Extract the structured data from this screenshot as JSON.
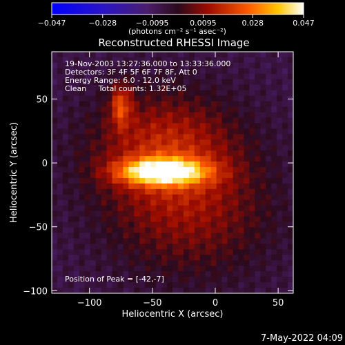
{
  "chart_data": {
    "type": "heatmap",
    "title": "Reconstructed RHESSI Image",
    "xlabel": "Heliocentric X (arcsec)",
    "ylabel": "Heliocentric Y (arcsec)",
    "xlim": [
      -130,
      62
    ],
    "ylim": [
      -102,
      87
    ],
    "x_ticks": [
      -100,
      -50,
      0,
      50
    ],
    "y_ticks": [
      -100,
      -50,
      0,
      50
    ],
    "x_tick_labels": [
      "−100",
      "−50",
      "0",
      "50"
    ],
    "y_tick_labels": [
      "−100",
      "−50",
      "0",
      "50"
    ],
    "annotations": [
      "19-Nov-2003 13:27:36.000 to 13:33:36.000",
      "Detectors: 3F 4F 5F 6F 7F 8F, Att 0",
      "Energy Range: 6.0 - 12.0 keV",
      "Clean     Total counts: 1.32E+05"
    ],
    "peak_label": "Position of Peak = [-42,-7]",
    "peak": [
      -42,
      -7
    ],
    "colorbar": {
      "range": [
        -0.047,
        0.047
      ],
      "ticks": [
        -0.047,
        -0.028,
        -0.0095,
        0.0095,
        0.028,
        0.047
      ],
      "tick_labels": [
        "−0.047",
        "−0.028",
        "−0.0095",
        "0.0095",
        "0.028",
        "0.047"
      ],
      "units_label": "(photons cm⁻² s⁻¹ asec⁻²)"
    },
    "sources": [
      {
        "x": -42,
        "y": -7,
        "sx": 24,
        "sy": 7,
        "amp": 0.047
      },
      {
        "x": -75,
        "y": 45,
        "sx": 6,
        "sy": 12,
        "amp": 0.022
      },
      {
        "x": -40,
        "y": 12,
        "sx": 40,
        "sy": 30,
        "amp": 0.02
      },
      {
        "x": -20,
        "y": -40,
        "sx": 45,
        "sy": 35,
        "amp": 0.014
      }
    ],
    "background_level": -0.006
  },
  "footer_timestamp": "7-May-2022 04:09"
}
